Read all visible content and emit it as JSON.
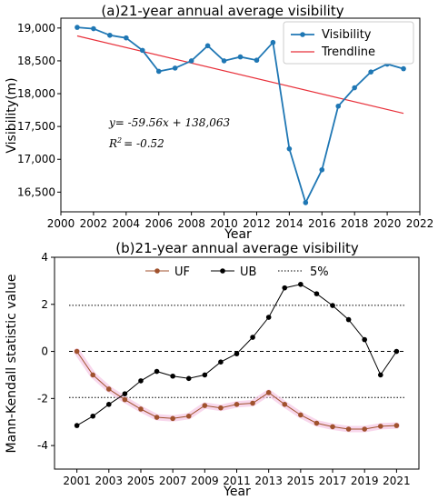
{
  "chart_data": [
    {
      "type": "line",
      "title": "(a)21-year annual average visibility",
      "xlabel": "Year",
      "ylabel": "Visibility(m)",
      "xlim": [
        2000,
        2022
      ],
      "ylim": [
        16200,
        19150
      ],
      "x_ticks": [
        2000,
        2002,
        2004,
        2006,
        2008,
        2010,
        2012,
        2014,
        2016,
        2018,
        2020,
        2022
      ],
      "y_ticks": [
        16500,
        17000,
        17500,
        18000,
        18500,
        19000
      ],
      "y_tick_labels": [
        "16,500",
        "17,000",
        "17,500",
        "18,000",
        "18,500",
        "19,000"
      ],
      "legend_position": "top-right",
      "grid": false,
      "series": [
        {
          "name": "Visibility",
          "color": "#1f77b4",
          "marker": "circle",
          "x": [
            2001,
            2002,
            2003,
            2004,
            2005,
            2006,
            2007,
            2008,
            2009,
            2010,
            2011,
            2012,
            2013,
            2014,
            2015,
            2016,
            2017,
            2018,
            2019,
            2020,
            2021
          ],
          "values": [
            19010,
            18990,
            18890,
            18850,
            18660,
            18340,
            18390,
            18500,
            18730,
            18500,
            18560,
            18510,
            18780,
            17160,
            16340,
            16840,
            17810,
            18090,
            18330,
            18450,
            18380
          ]
        },
        {
          "name": "Trendline",
          "color": "#e8303a",
          "marker": "none",
          "x": [
            2001,
            2021
          ],
          "values": [
            18880,
            17700
          ]
        }
      ],
      "annotations": [
        "y= -59.56x + 138,063",
        "R",
        "2",
        "= -0.52"
      ]
    },
    {
      "type": "line",
      "title": "(b)21-year annual average visibility",
      "xlabel": "Year",
      "ylabel": "Mann-Kendall statistic value",
      "xlim": [
        1999.6,
        2022.4
      ],
      "ylim": [
        -5,
        4
      ],
      "x_ticks": [
        2001,
        2003,
        2005,
        2007,
        2009,
        2011,
        2013,
        2015,
        2017,
        2019,
        2021
      ],
      "y_ticks": [
        -4,
        -2,
        0,
        2,
        4
      ],
      "legend_position": "top-center",
      "grid": false,
      "significance_level": 1.96,
      "series": [
        {
          "name": "UF",
          "color": "#a0522d",
          "marker": "circle",
          "x": [
            2001,
            2002,
            2003,
            2004,
            2005,
            2006,
            2007,
            2008,
            2009,
            2010,
            2011,
            2012,
            2013,
            2014,
            2015,
            2016,
            2017,
            2018,
            2019,
            2020,
            2021
          ],
          "values": [
            0,
            -1.0,
            -1.6,
            -2.05,
            -2.45,
            -2.8,
            -2.85,
            -2.75,
            -2.3,
            -2.4,
            -2.25,
            -2.2,
            -1.75,
            -2.25,
            -2.7,
            -3.05,
            -3.2,
            -3.3,
            -3.3,
            -3.18,
            -3.15
          ]
        },
        {
          "name": "UB",
          "color": "#000000",
          "marker": "circle",
          "x": [
            2001,
            2002,
            2003,
            2004,
            2005,
            2006,
            2007,
            2008,
            2009,
            2010,
            2011,
            2012,
            2013,
            2014,
            2015,
            2016,
            2017,
            2018,
            2019,
            2020,
            2021
          ],
          "values": [
            -3.15,
            -2.75,
            -2.25,
            -1.8,
            -1.25,
            -0.85,
            -1.05,
            -1.15,
            -1.0,
            -0.45,
            -0.1,
            0.6,
            1.45,
            2.7,
            2.85,
            2.45,
            1.95,
            1.35,
            0.5,
            -1.0,
            0
          ]
        },
        {
          "name": "5%",
          "color": "#000000",
          "marker": "none",
          "style": "dotted"
        }
      ]
    }
  ]
}
